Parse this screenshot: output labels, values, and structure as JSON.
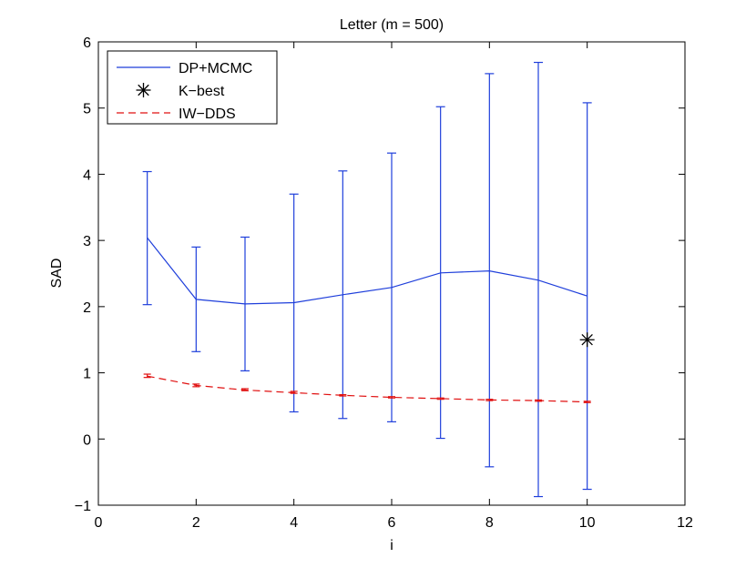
{
  "chart_data": {
    "type": "line",
    "title": "Letter (m = 500)",
    "xlabel": "i",
    "ylabel": "SAD",
    "xlim": [
      0,
      12
    ],
    "ylim": [
      -1,
      6
    ],
    "xticks": [
      0,
      2,
      4,
      6,
      8,
      10,
      12
    ],
    "yticks": [
      -1,
      0,
      1,
      2,
      3,
      4,
      5,
      6
    ],
    "xtick_labels": [
      "0",
      "2",
      "4",
      "6",
      "8",
      "10",
      "12"
    ],
    "ytick_labels": [
      "−1",
      "0",
      "1",
      "2",
      "3",
      "4",
      "5",
      "6"
    ],
    "grid": false,
    "legend_position": "top-left",
    "series": [
      {
        "name": "DP+MCMC",
        "color": "#1f3fdb",
        "style": "solid-with-errorbars",
        "x": [
          1,
          2,
          3,
          4,
          5,
          6,
          7,
          8,
          9,
          10
        ],
        "y": [
          3.04,
          2.11,
          2.04,
          2.06,
          2.18,
          2.29,
          2.51,
          2.54,
          2.4,
          2.16
        ],
        "lower": [
          2.03,
          1.32,
          1.03,
          0.41,
          0.31,
          0.26,
          0.01,
          -0.42,
          -0.87,
          -0.76
        ],
        "upper": [
          4.04,
          2.9,
          3.05,
          3.7,
          4.05,
          4.32,
          5.02,
          5.52,
          5.69,
          5.08
        ]
      },
      {
        "name": "K−best",
        "color": "#000000",
        "style": "asterisk-marker",
        "x": [
          10
        ],
        "y": [
          1.5
        ]
      },
      {
        "name": "IW−DDS",
        "color": "#e01010",
        "style": "dashed-with-errorbars",
        "x": [
          1,
          2,
          3,
          4,
          5,
          6,
          7,
          8,
          9,
          10
        ],
        "y": [
          0.95,
          0.81,
          0.74,
          0.7,
          0.66,
          0.63,
          0.61,
          0.59,
          0.58,
          0.56
        ],
        "lower": [
          0.93,
          0.79,
          0.73,
          0.69,
          0.65,
          0.62,
          0.6,
          0.58,
          0.57,
          0.55
        ],
        "upper": [
          0.98,
          0.83,
          0.76,
          0.72,
          0.67,
          0.64,
          0.62,
          0.6,
          0.59,
          0.57
        ]
      }
    ]
  }
}
